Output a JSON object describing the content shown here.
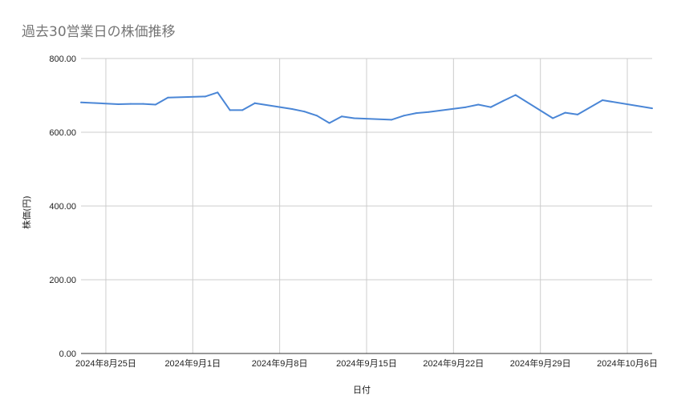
{
  "chart_data": {
    "type": "line",
    "title": "過去30営業日の株価推移",
    "xlabel": "日付",
    "ylabel": "株価(円)",
    "ylim": [
      0,
      800
    ],
    "y_ticks": [
      "800.00",
      "600.00",
      "400.00",
      "200.00",
      "0.00"
    ],
    "y_tick_values": [
      800,
      600,
      400,
      200,
      0
    ],
    "x_range": [
      "2024-08-23",
      "2024-10-08"
    ],
    "x_ticks": [
      {
        "date": "2024-08-25",
        "label": "2024年8月25日"
      },
      {
        "date": "2024-09-01",
        "label": "2024年9月1日"
      },
      {
        "date": "2024-09-08",
        "label": "2024年9月8日"
      },
      {
        "date": "2024-09-15",
        "label": "2024年9月15日"
      },
      {
        "date": "2024-09-22",
        "label": "2024年9月22日"
      },
      {
        "date": "2024-09-29",
        "label": "2024年9月29日"
      },
      {
        "date": "2024-10-06",
        "label": "2024年10月6日"
      }
    ],
    "grid": true,
    "line_color": "#4a86d6",
    "gridline_color": "#cccccc",
    "series": [
      {
        "values": [
          {
            "x": "2024-08-23",
            "y": 681
          },
          {
            "x": "2024-08-26",
            "y": 676
          },
          {
            "x": "2024-08-27",
            "y": 677
          },
          {
            "x": "2024-08-28",
            "y": 677
          },
          {
            "x": "2024-08-29",
            "y": 675
          },
          {
            "x": "2024-08-30",
            "y": 694
          },
          {
            "x": "2024-09-02",
            "y": 697
          },
          {
            "x": "2024-09-03",
            "y": 708
          },
          {
            "x": "2024-09-04",
            "y": 660
          },
          {
            "x": "2024-09-05",
            "y": 660
          },
          {
            "x": "2024-09-06",
            "y": 679
          },
          {
            "x": "2024-09-09",
            "y": 663
          },
          {
            "x": "2024-09-10",
            "y": 656
          },
          {
            "x": "2024-09-11",
            "y": 645
          },
          {
            "x": "2024-09-12",
            "y": 625
          },
          {
            "x": "2024-09-13",
            "y": 643
          },
          {
            "x": "2024-09-14",
            "y": 638
          },
          {
            "x": "2024-09-17",
            "y": 634
          },
          {
            "x": "2024-09-18",
            "y": 645
          },
          {
            "x": "2024-09-19",
            "y": 652
          },
          {
            "x": "2024-09-20",
            "y": 655
          },
          {
            "x": "2024-09-23",
            "y": 668
          },
          {
            "x": "2024-09-24",
            "y": 675
          },
          {
            "x": "2024-09-25",
            "y": 668
          },
          {
            "x": "2024-09-26",
            "y": 685
          },
          {
            "x": "2024-09-27",
            "y": 701
          },
          {
            "x": "2024-09-30",
            "y": 638
          },
          {
            "x": "2024-10-01",
            "y": 653
          },
          {
            "x": "2024-10-02",
            "y": 648
          },
          {
            "x": "2024-10-04",
            "y": 687
          },
          {
            "x": "2024-10-08",
            "y": 665
          }
        ]
      }
    ]
  }
}
